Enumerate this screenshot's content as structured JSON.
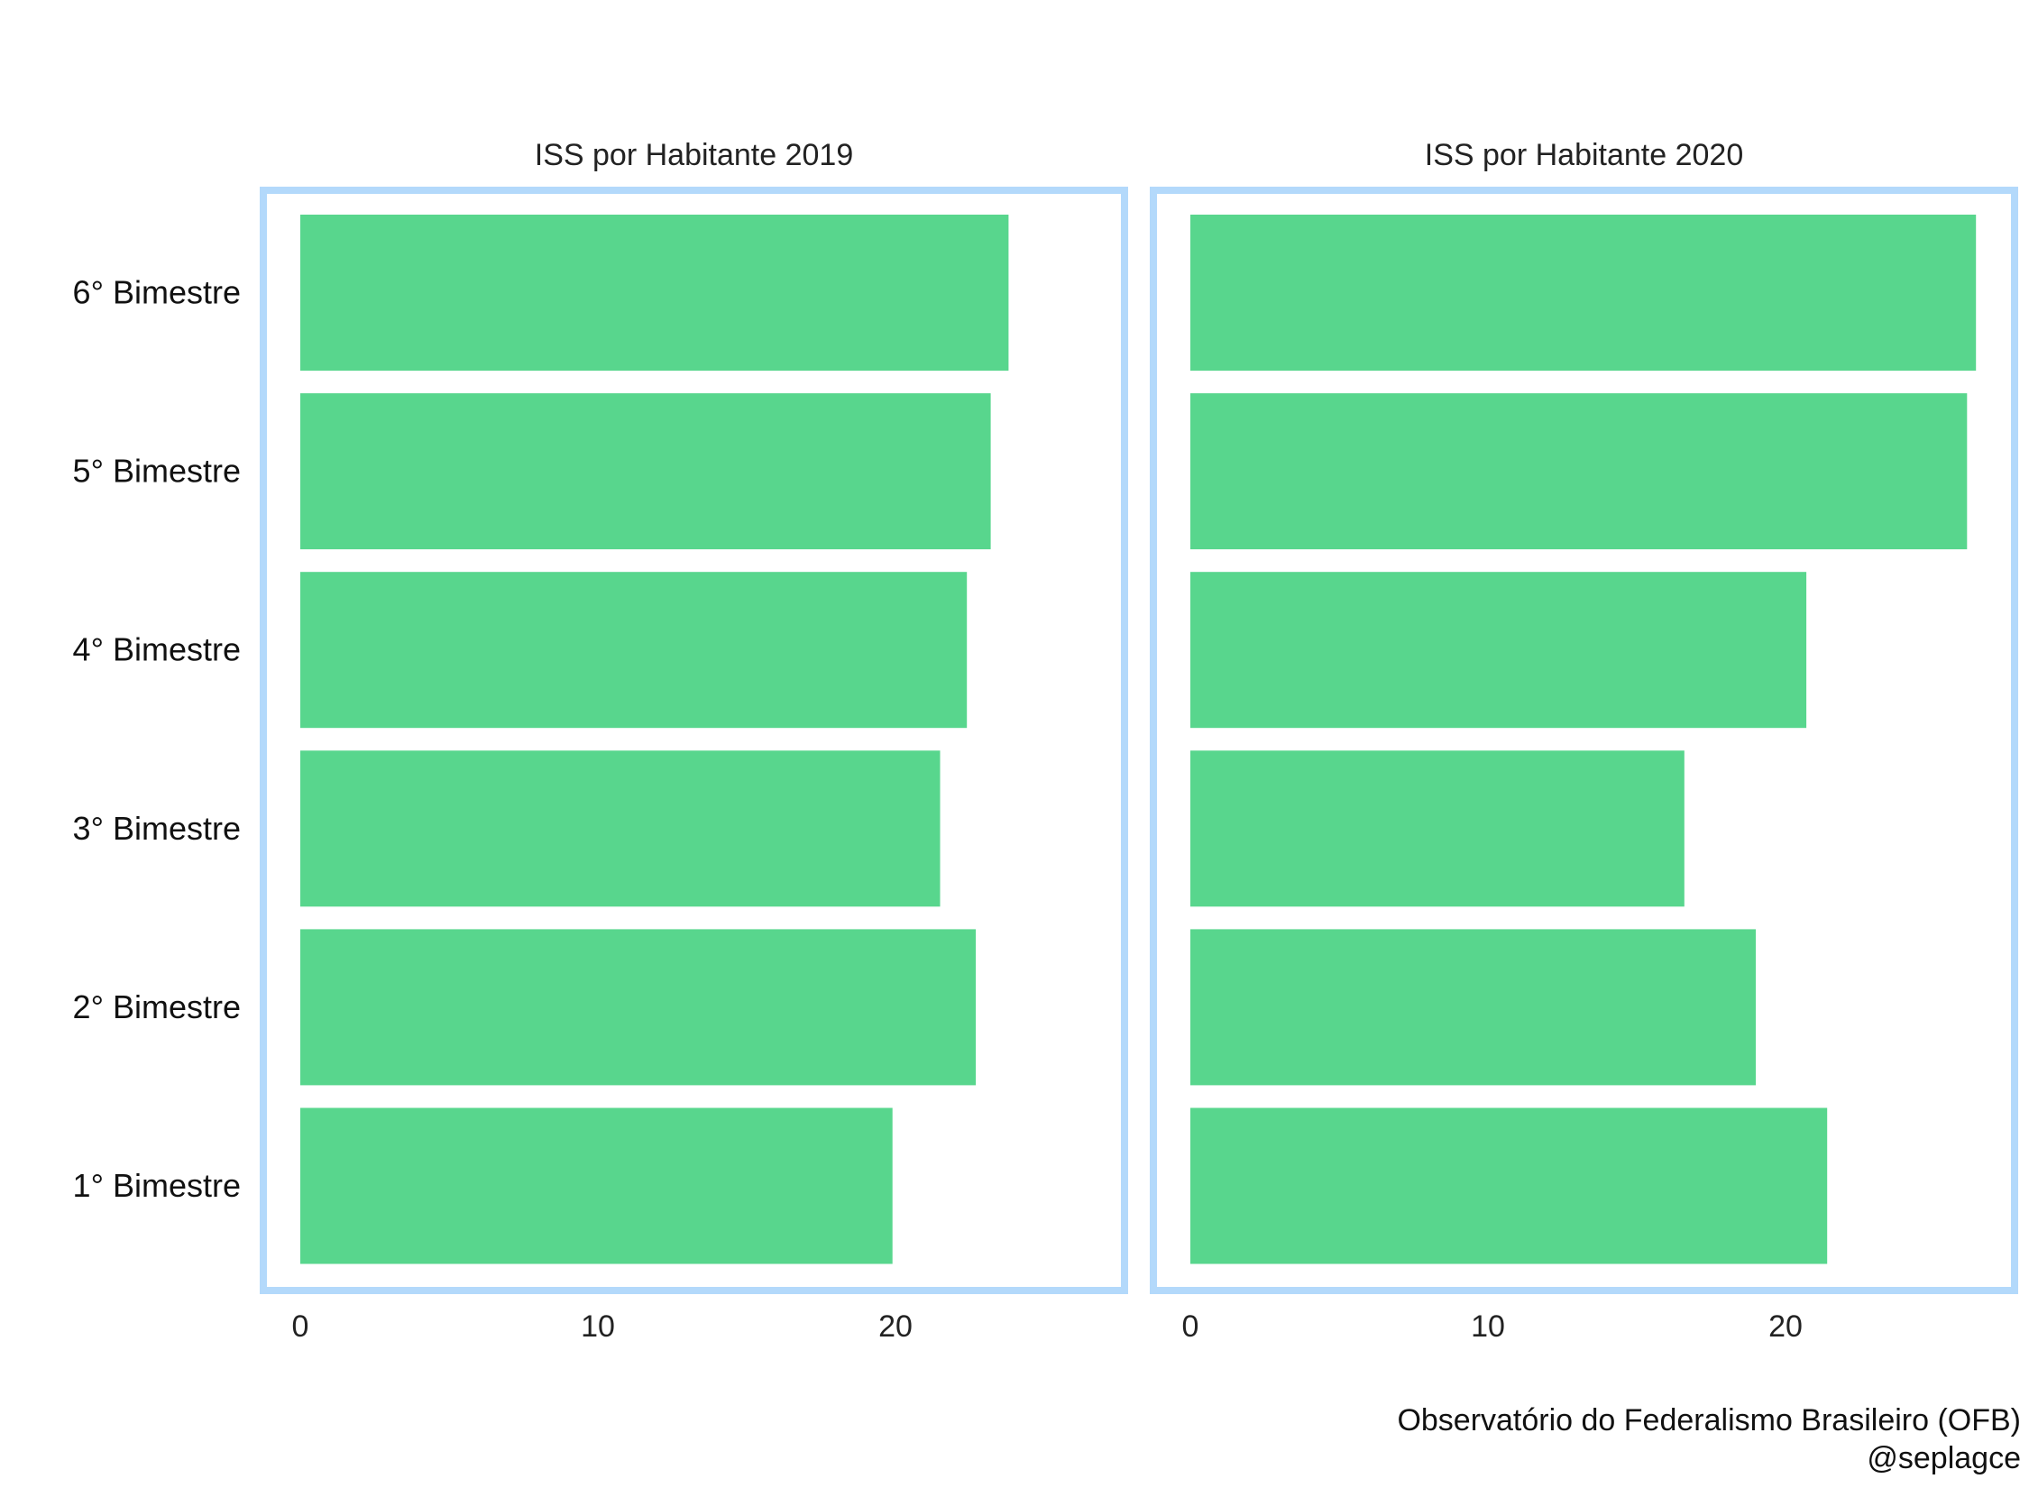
{
  "chart_data": {
    "type": "bar",
    "orientation": "horizontal",
    "categories": [
      "1° Bimestre",
      "2° Bimestre",
      "3° Bimestre",
      "4° Bimestre",
      "5° Bimestre",
      "6° Bimestre"
    ],
    "panels": [
      {
        "title": "ISS por Habitante 2019",
        "values": [
          19.9,
          22.7,
          21.5,
          22.4,
          23.2,
          23.8
        ]
      },
      {
        "title": "ISS por Habitante 2020",
        "values": [
          21.4,
          19.0,
          16.6,
          20.7,
          26.1,
          26.4
        ]
      }
    ],
    "xlim": [
      0,
      27.5
    ],
    "xticks": [
      "0",
      "10",
      "20"
    ],
    "xtick_values": [
      0,
      10,
      20
    ],
    "grid": false,
    "legend": "none"
  },
  "colors": {
    "bar": "#58d68d",
    "panel_border": "#b3d9fb"
  },
  "caption": {
    "line1": "Observatório do Federalismo Brasileiro (OFB)",
    "line2": "@seplagce"
  }
}
